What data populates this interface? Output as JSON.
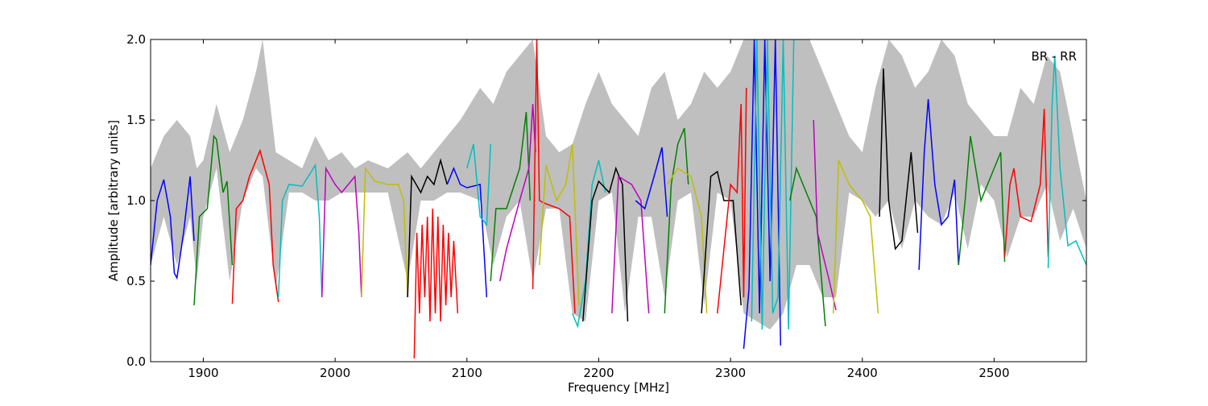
{
  "chart_data": {
    "type": "line",
    "annotation": "BR - RR",
    "xlabel": "Frequency [MHz]",
    "ylabel": "Amplitude [arbitrary units]",
    "xlim": [
      1860,
      2570
    ],
    "ylim": [
      0,
      2.0
    ],
    "xticks": [
      1900,
      2000,
      2100,
      2200,
      2300,
      2400,
      2500
    ],
    "yticks": [
      {
        "value": 0,
        "label": "0.0"
      },
      0.5,
      {
        "value": 1,
        "label": "1.0"
      },
      1.5,
      {
        "value": 2,
        "label": "2.0"
      }
    ],
    "band": {
      "color": "#bfbfbf",
      "x": [
        1860,
        1870,
        1880,
        1890,
        1895,
        1900,
        1910,
        1920,
        1930,
        1940,
        1945,
        1955,
        1965,
        1975,
        1985,
        1995,
        2005,
        2015,
        2025,
        2040,
        2055,
        2065,
        2075,
        2085,
        2095,
        2110,
        2120,
        2130,
        2140,
        2150,
        2160,
        2170,
        2180,
        2190,
        2200,
        2210,
        2220,
        2230,
        2240,
        2250,
        2260,
        2270,
        2280,
        2290,
        2300,
        2310,
        2320,
        2330,
        2340,
        2350,
        2360,
        2370,
        2380,
        2390,
        2400,
        2410,
        2420,
        2430,
        2440,
        2450,
        2460,
        2470,
        2480,
        2490,
        2500,
        2510,
        2520,
        2530,
        2540,
        2550,
        2560,
        2570
      ],
      "upper": [
        1.2,
        1.4,
        1.5,
        1.4,
        1.2,
        1.25,
        1.6,
        1.3,
        1.5,
        1.8,
        2.0,
        1.3,
        1.25,
        1.2,
        1.4,
        1.25,
        1.3,
        1.2,
        1.25,
        1.2,
        1.3,
        1.2,
        1.3,
        1.4,
        1.5,
        1.7,
        1.6,
        1.8,
        1.9,
        2.0,
        1.4,
        1.3,
        1.35,
        1.6,
        1.8,
        1.6,
        1.5,
        1.4,
        1.7,
        1.8,
        1.5,
        1.6,
        1.8,
        1.7,
        1.8,
        2.0,
        2.0,
        2.0,
        2.0,
        2.0,
        2.0,
        1.8,
        1.6,
        1.4,
        1.3,
        1.7,
        2.0,
        1.9,
        1.7,
        1.8,
        2.0,
        1.9,
        1.6,
        1.5,
        1.4,
        1.4,
        1.7,
        1.6,
        1.9,
        1.8,
        1.4,
        1.0
      ],
      "lower": [
        0.6,
        0.9,
        0.6,
        0.9,
        0.5,
        0.9,
        1.2,
        0.5,
        1.0,
        1.2,
        1.15,
        0.45,
        1.05,
        1.05,
        1.0,
        1.0,
        1.05,
        1.05,
        1.05,
        1.05,
        0.5,
        1.0,
        1.0,
        1.05,
        1.05,
        1.0,
        0.6,
        0.9,
        1.0,
        0.5,
        0.95,
        0.95,
        0.3,
        0.25,
        1.0,
        1.05,
        0.3,
        0.9,
        0.9,
        0.4,
        1.0,
        1.05,
        0.35,
        1.05,
        1.0,
        0.3,
        0.25,
        0.2,
        0.3,
        0.6,
        0.6,
        0.4,
        0.4,
        1.05,
        1.0,
        0.9,
        1.0,
        0.7,
        1.0,
        0.9,
        0.85,
        1.05,
        0.7,
        1.1,
        1.0,
        0.65,
        0.9,
        0.9,
        1.1,
        0.75,
        0.95,
        0.7
      ]
    },
    "series": [
      {
        "color": "#0000ff",
        "x": [
          1860,
          1865,
          1870,
          1875,
          1878,
          1880,
          1885,
          1890,
          1893
        ],
        "values": [
          0.6,
          1.0,
          1.13,
          0.9,
          0.55,
          0.52,
          0.8,
          1.15,
          0.75
        ]
      },
      {
        "color": "#008000",
        "x": [
          1893,
          1897,
          1903,
          1908,
          1910,
          1915,
          1918,
          1922
        ],
        "values": [
          0.35,
          0.9,
          0.95,
          1.4,
          1.38,
          1.05,
          1.12,
          0.6
        ]
      },
      {
        "color": "#ff0000",
        "x": [
          1922,
          1925,
          1930,
          1935,
          1943,
          1950,
          1953,
          1957
        ],
        "values": [
          0.36,
          0.95,
          1.0,
          1.15,
          1.31,
          1.1,
          0.6,
          0.37
        ]
      },
      {
        "color": "#00bfbf",
        "x": [
          1957,
          1960,
          1965,
          1975,
          1985,
          1988,
          1990
        ],
        "values": [
          0.4,
          1.0,
          1.1,
          1.09,
          1.22,
          0.9,
          0.4
        ]
      },
      {
        "color": "#bf00bf",
        "x": [
          1990,
          1993,
          2000,
          2005,
          2010,
          2015,
          2018,
          2020
        ],
        "values": [
          0.4,
          1.2,
          1.1,
          1.05,
          1.1,
          1.15,
          0.8,
          0.4
        ]
      },
      {
        "color": "#bfbf00",
        "x": [
          2020,
          2023,
          2030,
          2040,
          2048,
          2052,
          2055
        ],
        "values": [
          0.4,
          1.2,
          1.12,
          1.1,
          1.1,
          1.0,
          0.4
        ]
      },
      {
        "color": "#000000",
        "x": [
          2055,
          2058,
          2065,
          2070,
          2075,
          2080,
          2085
        ],
        "values": [
          0.4,
          1.15,
          1.05,
          1.15,
          1.1,
          1.25,
          1.1
        ]
      },
      {
        "color": "#ff0000",
        "x": [
          2060,
          2062,
          2064,
          2066,
          2068,
          2070,
          2072,
          2074,
          2076,
          2078,
          2080,
          2082,
          2084,
          2086,
          2088,
          2090,
          2093
        ],
        "values": [
          0.02,
          0.8,
          0.3,
          0.85,
          0.4,
          0.9,
          0.25,
          0.95,
          0.3,
          0.9,
          0.25,
          0.85,
          0.35,
          0.8,
          0.4,
          0.75,
          0.3
        ]
      },
      {
        "color": "#0000ff",
        "x": [
          2085,
          2090,
          2095,
          2100,
          2110,
          2115
        ],
        "values": [
          1.1,
          1.2,
          1.1,
          1.08,
          1.1,
          0.4
        ]
      },
      {
        "color": "#00bfbf",
        "x": [
          2100,
          2105,
          2110,
          2115,
          2118
        ],
        "values": [
          1.2,
          1.35,
          0.9,
          0.85,
          1.35
        ]
      },
      {
        "color": "#008000",
        "x": [
          2118,
          2122,
          2130,
          2140,
          2145,
          2148
        ],
        "values": [
          0.5,
          0.95,
          0.95,
          1.2,
          1.55,
          1.0
        ]
      },
      {
        "color": "#bf00bf",
        "x": [
          2125,
          2130,
          2140,
          2147,
          2150,
          2152
        ],
        "values": [
          0.5,
          0.7,
          1.0,
          1.2,
          1.6,
          1.3
        ]
      },
      {
        "color": "#ff0000",
        "x": [
          2150,
          2153,
          2155,
          2160,
          2170,
          2178,
          2182
        ],
        "values": [
          0.45,
          2.0,
          1.0,
          0.98,
          0.95,
          0.9,
          0.3
        ]
      },
      {
        "color": "#bfbf00",
        "x": [
          2155,
          2160,
          2168,
          2175,
          2180,
          2185
        ],
        "values": [
          0.6,
          1.22,
          1.0,
          1.1,
          1.35,
          0.35
        ]
      },
      {
        "color": "#00bfbf",
        "x": [
          2180,
          2184,
          2190,
          2195,
          2200,
          2205
        ],
        "values": [
          0.3,
          0.22,
          0.5,
          1.1,
          1.25,
          1.05
        ]
      },
      {
        "color": "#000000",
        "x": [
          2188,
          2195,
          2200,
          2208,
          2213,
          2218,
          2222
        ],
        "values": [
          0.25,
          1.0,
          1.12,
          1.05,
          1.2,
          1.1,
          0.25
        ]
      },
      {
        "color": "#bf00bf",
        "x": [
          2210,
          2215,
          2225,
          2232,
          2238
        ],
        "values": [
          0.3,
          1.15,
          1.1,
          1.0,
          0.3
        ]
      },
      {
        "color": "#0000ff",
        "x": [
          2228,
          2235,
          2242,
          2248,
          2252
        ],
        "values": [
          1.0,
          0.95,
          1.15,
          1.33,
          0.9
        ]
      },
      {
        "color": "#008000",
        "x": [
          2250,
          2255,
          2260,
          2265,
          2268
        ],
        "values": [
          0.3,
          1.1,
          1.35,
          1.45,
          1.1
        ]
      },
      {
        "color": "#bfbf00",
        "x": [
          2252,
          2260,
          2270,
          2278,
          2282
        ],
        "values": [
          1.1,
          1.2,
          1.15,
          0.9,
          0.3
        ]
      },
      {
        "color": "#000000",
        "x": [
          2278,
          2285,
          2290,
          2295,
          2302,
          2308
        ],
        "values": [
          0.3,
          1.15,
          1.18,
          1.0,
          1.0,
          0.35
        ]
      },
      {
        "color": "#ff0000",
        "x": [
          2290,
          2300,
          2305,
          2308,
          2310,
          2312
        ],
        "values": [
          0.3,
          1.1,
          1.05,
          1.6,
          0.4,
          1.7
        ]
      },
      {
        "color": "#0000ff",
        "x": [
          2310,
          2314,
          2318,
          2322,
          2326,
          2330,
          2334,
          2338
        ],
        "values": [
          0.08,
          0.45,
          2.0,
          0.3,
          2.0,
          0.5,
          2.0,
          0.1
        ]
      },
      {
        "color": "#00bfbf",
        "x": [
          2316,
          2320,
          2324,
          2328,
          2332,
          2336,
          2340,
          2344,
          2348
        ],
        "values": [
          0.25,
          2.0,
          0.2,
          2.0,
          0.3,
          0.4,
          2.0,
          0.2,
          2.0
        ]
      },
      {
        "color": "#008000",
        "x": [
          2345,
          2350,
          2355,
          2360,
          2365,
          2372
        ],
        "values": [
          1.0,
          1.2,
          1.1,
          1.0,
          0.9,
          0.22
        ]
      },
      {
        "color": "#bf00bf",
        "x": [
          2363,
          2366,
          2369,
          2372,
          2375,
          2380
        ],
        "values": [
          1.5,
          0.8,
          0.7,
          0.6,
          0.5,
          0.32
        ]
      },
      {
        "color": "#bfbf00",
        "x": [
          2378,
          2382,
          2390,
          2400,
          2406,
          2412
        ],
        "values": [
          0.3,
          1.25,
          1.1,
          1.0,
          0.9,
          0.3
        ]
      },
      {
        "color": "#000000",
        "x": [
          2413,
          2416,
          2420,
          2425,
          2430,
          2437,
          2442
        ],
        "values": [
          0.9,
          1.82,
          1.0,
          0.7,
          0.75,
          1.3,
          0.8
        ]
      },
      {
        "color": "#0000ff",
        "x": [
          2443,
          2447,
          2450,
          2455,
          2460,
          2465,
          2470,
          2473
        ],
        "values": [
          0.57,
          1.3,
          1.63,
          1.1,
          0.85,
          0.9,
          1.13,
          0.6
        ]
      },
      {
        "color": "#008000",
        "x": [
          2473,
          2478,
          2482,
          2490,
          2500,
          2505,
          2508
        ],
        "values": [
          0.6,
          1.0,
          1.4,
          1.0,
          1.2,
          1.3,
          0.62
        ]
      },
      {
        "color": "#ff0000",
        "x": [
          2508,
          2512,
          2515,
          2520,
          2528,
          2535,
          2538,
          2541
        ],
        "values": [
          0.65,
          1.1,
          1.2,
          0.9,
          0.87,
          1.1,
          1.57,
          0.65
        ]
      },
      {
        "color": "#00bfbf",
        "x": [
          2541,
          2544,
          2546,
          2550,
          2556,
          2562,
          2570
        ],
        "values": [
          0.58,
          1.6,
          1.9,
          1.2,
          0.72,
          0.75,
          0.6
        ]
      }
    ]
  }
}
